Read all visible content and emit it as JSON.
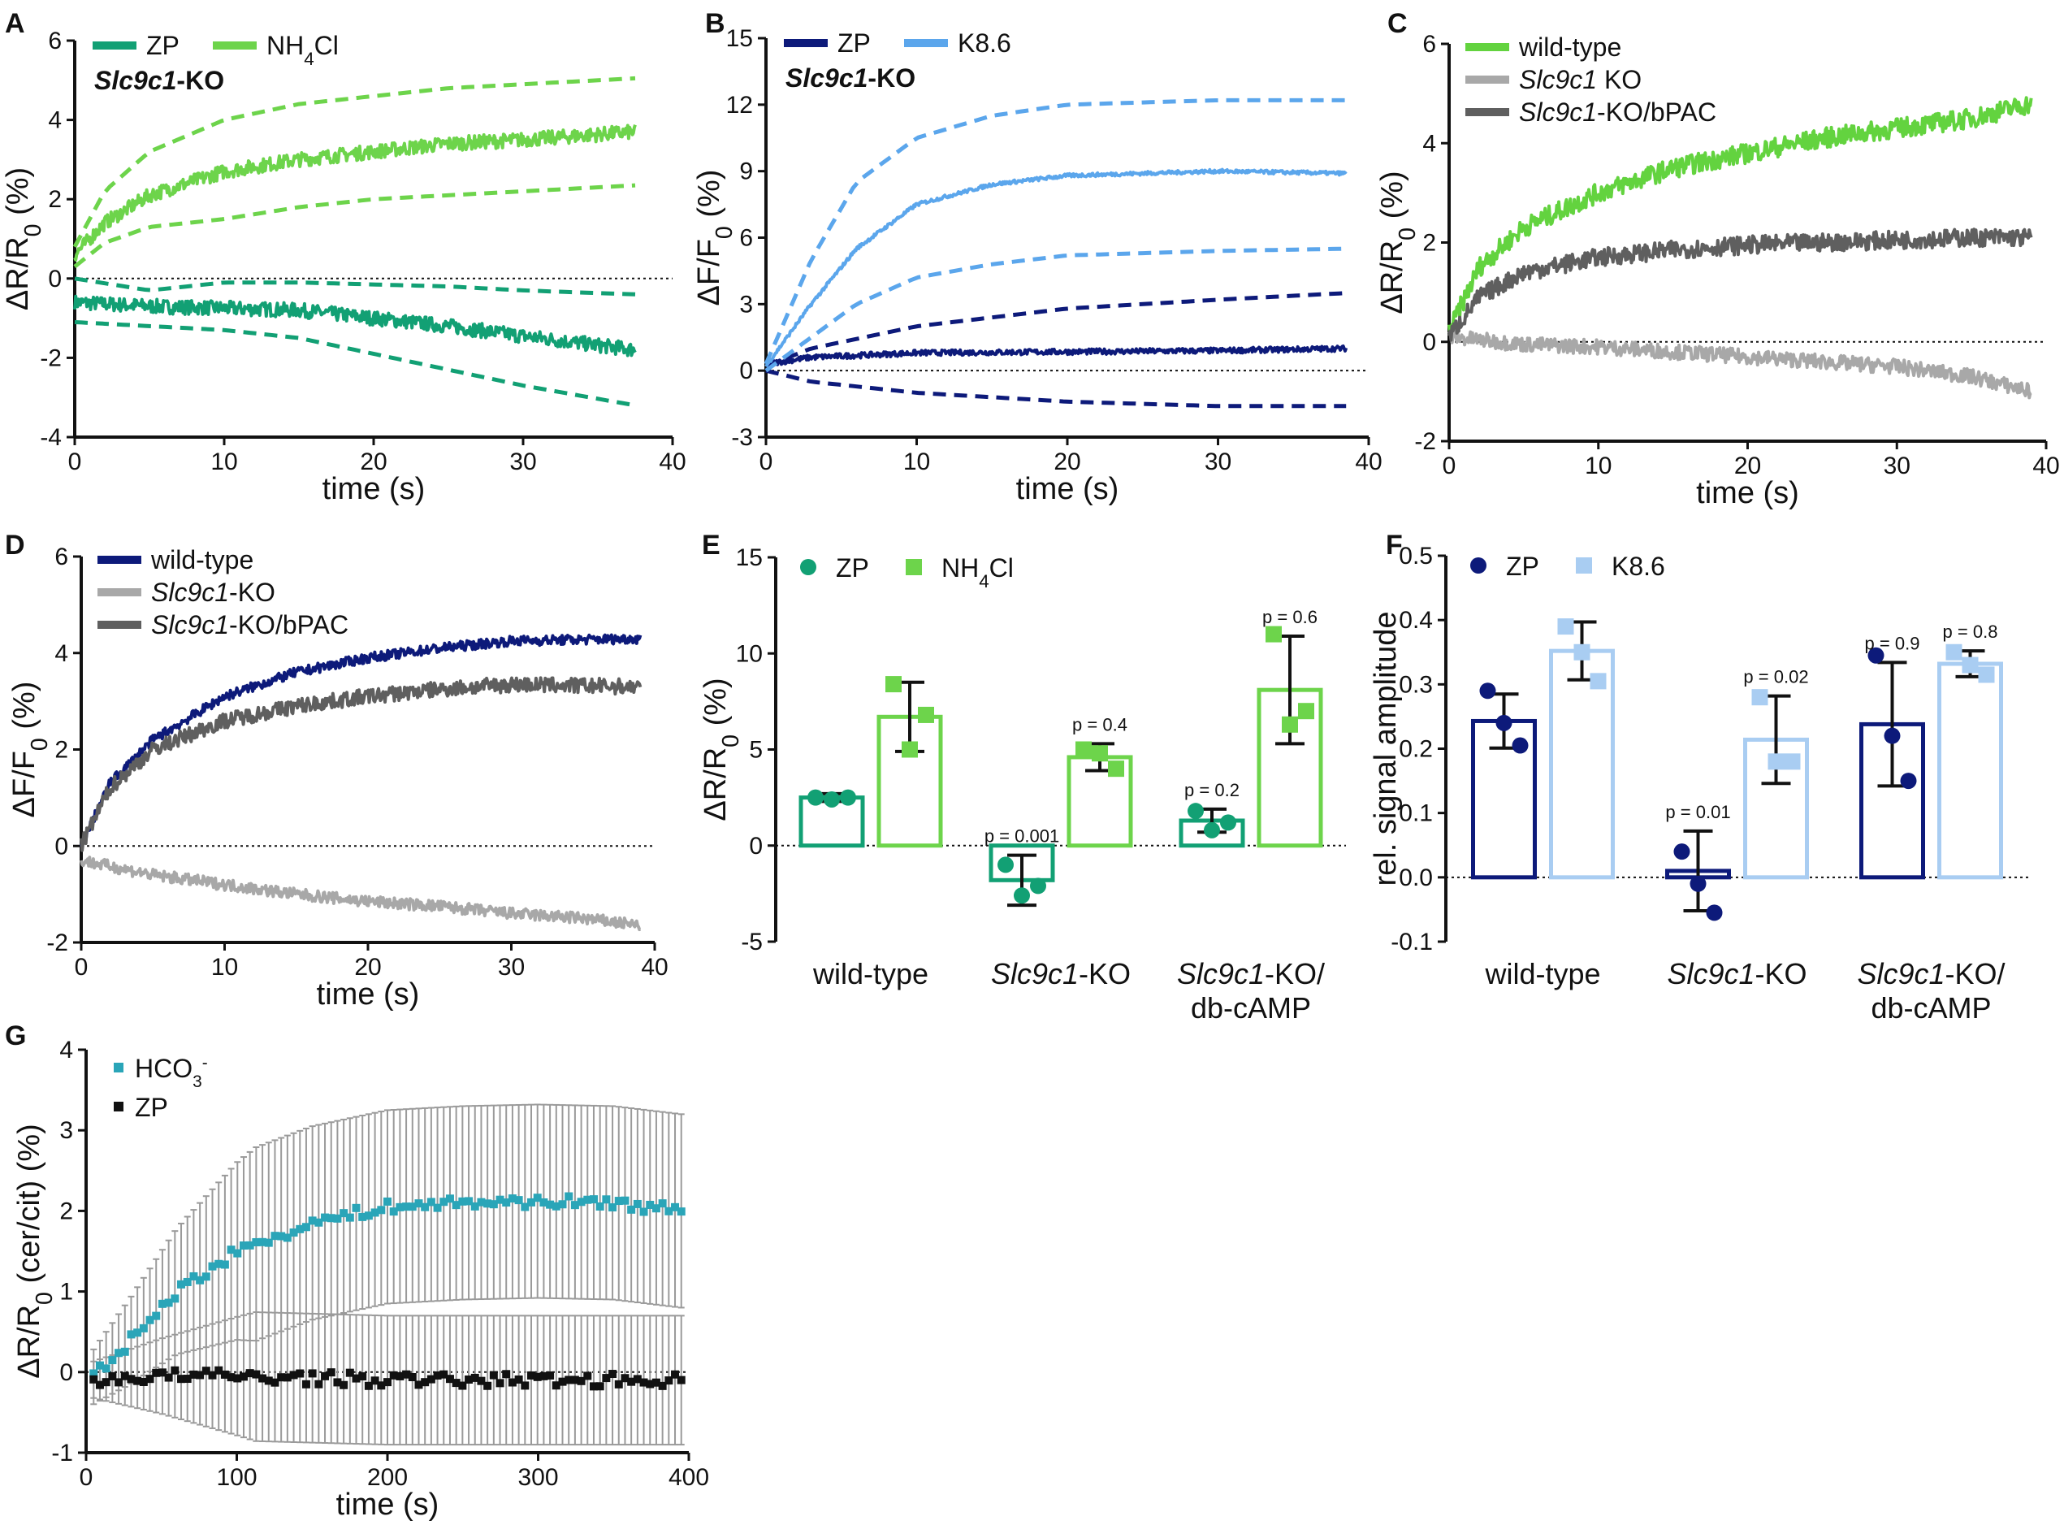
{
  "figure": {
    "panels": [
      "A",
      "B",
      "C",
      "D",
      "E",
      "F",
      "G"
    ]
  },
  "chart_data": [
    {
      "id": "A",
      "letter": "A",
      "type": "line",
      "ylabel": "ΔR/R0 (%)",
      "xlabel": "time (s)",
      "xlim": [
        0,
        40
      ],
      "ylim": [
        -4,
        6
      ],
      "xticks": [
        0,
        10,
        20,
        30,
        40
      ],
      "yticks": [
        -4,
        -2,
        0,
        2,
        4,
        6
      ],
      "annotation": "Slc9c1-KO",
      "series": [
        {
          "name": "ZP",
          "color": "#12a074",
          "noise": 0.18,
          "xmax": 37.5,
          "x": [
            0,
            5,
            10,
            15,
            20,
            25,
            30,
            37.5
          ],
          "y": [
            -0.6,
            -0.7,
            -0.75,
            -0.8,
            -1.0,
            -1.2,
            -1.45,
            -1.8
          ],
          "upper": [
            0,
            -0.3,
            -0.1,
            -0.1,
            -0.15,
            -0.2,
            -0.3,
            -0.4
          ],
          "lower": [
            -1.1,
            -1.2,
            -1.3,
            -1.5,
            -1.9,
            -2.3,
            -2.7,
            -3.2
          ]
        },
        {
          "name": "NH4Cl",
          "color": "#6dd44b",
          "noise": 0.18,
          "xmax": 37.5,
          "x": [
            0,
            2,
            5,
            10,
            15,
            20,
            25,
            30,
            37.5
          ],
          "y": [
            0.6,
            1.4,
            2.1,
            2.7,
            3.0,
            3.2,
            3.4,
            3.5,
            3.7
          ],
          "upper": [
            0.8,
            2.2,
            3.2,
            4.0,
            4.4,
            4.6,
            4.8,
            4.9,
            5.05
          ],
          "lower": [
            0.3,
            0.9,
            1.3,
            1.5,
            1.8,
            2.0,
            2.1,
            2.2,
            2.35
          ]
        }
      ]
    },
    {
      "id": "B",
      "letter": "B",
      "type": "line",
      "ylabel": "ΔF/F0 (%)",
      "xlabel": "time (s)",
      "xlim": [
        0,
        40
      ],
      "ylim": [
        -3,
        15
      ],
      "xticks": [
        0,
        10,
        20,
        30,
        40
      ],
      "yticks": [
        -3,
        0,
        3,
        6,
        9,
        12,
        15
      ],
      "annotation": "Slc9c1-KO",
      "series": [
        {
          "name": "ZP",
          "color": "#0d1a7a",
          "noise": 0.12,
          "xmax": 38.5,
          "x": [
            0,
            3,
            10,
            20,
            30,
            38.5
          ],
          "y": [
            0.3,
            0.6,
            0.8,
            0.85,
            0.9,
            1.0
          ],
          "upper": [
            0.2,
            1.0,
            2.0,
            2.8,
            3.2,
            3.5
          ],
          "lower": [
            0.0,
            -0.5,
            -1.0,
            -1.4,
            -1.6,
            -1.6
          ]
        },
        {
          "name": "K8.6",
          "color": "#5ba6ec",
          "noise": 0.08,
          "xmax": 38.5,
          "x": [
            0,
            3,
            6,
            10,
            15,
            20,
            30,
            38.5
          ],
          "y": [
            0.2,
            3.0,
            5.5,
            7.5,
            8.4,
            8.8,
            9.0,
            8.9
          ],
          "upper": [
            0.3,
            5.0,
            8.5,
            10.5,
            11.5,
            12.0,
            12.2,
            12.2
          ],
          "lower": [
            0.0,
            1.5,
            3.0,
            4.2,
            4.8,
            5.2,
            5.4,
            5.5
          ]
        }
      ]
    },
    {
      "id": "C",
      "letter": "C",
      "type": "line",
      "ylabel": "ΔR/R0 (%)",
      "xlabel": "time (s)",
      "xlim": [
        0,
        40
      ],
      "ylim": [
        -2,
        6
      ],
      "xticks": [
        0,
        10,
        20,
        30,
        40
      ],
      "yticks": [
        -2,
        0,
        2,
        4,
        6
      ],
      "series": [
        {
          "name": "wild-type",
          "color": "#63d33f",
          "noise": 0.2,
          "xmax": 39,
          "x": [
            0,
            2,
            5,
            10,
            15,
            20,
            25,
            30,
            35,
            39
          ],
          "y": [
            0.2,
            1.5,
            2.3,
            3.0,
            3.5,
            3.8,
            4.1,
            4.3,
            4.5,
            4.8
          ]
        },
        {
          "name": "Slc9c1 KO",
          "color": "#a8a8a8",
          "noise": 0.15,
          "xmax": 39,
          "x": [
            0,
            5,
            10,
            15,
            20,
            25,
            30,
            35,
            39
          ],
          "y": [
            0.1,
            -0.05,
            -0.1,
            -0.2,
            -0.3,
            -0.4,
            -0.5,
            -0.7,
            -1.0
          ]
        },
        {
          "name": "Slc9c1-KO/bPAC",
          "color": "#5f5f5f",
          "noise": 0.18,
          "xmax": 39,
          "x": [
            0,
            2,
            5,
            10,
            15,
            20,
            25,
            30,
            35,
            39
          ],
          "y": [
            0.1,
            0.9,
            1.4,
            1.7,
            1.85,
            1.95,
            2.0,
            2.05,
            2.1,
            2.1
          ]
        }
      ]
    },
    {
      "id": "D",
      "letter": "D",
      "type": "line",
      "ylabel": "ΔF/F0 (%)",
      "xlabel": "time (s)",
      "xlim": [
        0,
        40
      ],
      "ylim": [
        -2,
        6
      ],
      "xticks": [
        0,
        10,
        20,
        30,
        40
      ],
      "yticks": [
        -2,
        0,
        2,
        4,
        6
      ],
      "series": [
        {
          "name": "wild-type",
          "color": "#0d1a7a",
          "noise": 0.1,
          "xmax": 39,
          "x": [
            0,
            2,
            5,
            10,
            15,
            20,
            25,
            30,
            39
          ],
          "y": [
            0,
            1.3,
            2.2,
            3.1,
            3.6,
            3.9,
            4.1,
            4.25,
            4.3
          ]
        },
        {
          "name": "Slc9c1-KO",
          "color": "#a8a8a8",
          "noise": 0.12,
          "xmax": 39,
          "x": [
            0,
            5,
            10,
            15,
            20,
            25,
            30,
            35,
            39
          ],
          "y": [
            -0.3,
            -0.6,
            -0.8,
            -1.0,
            -1.15,
            -1.25,
            -1.4,
            -1.5,
            -1.65
          ]
        },
        {
          "name": "Slc9c1-KO/bPAC",
          "color": "#5f5f5f",
          "noise": 0.16,
          "xmax": 39,
          "x": [
            0,
            2,
            5,
            10,
            15,
            20,
            25,
            30,
            39
          ],
          "y": [
            0,
            1.2,
            2.0,
            2.6,
            2.9,
            3.1,
            3.25,
            3.35,
            3.3
          ]
        }
      ]
    },
    {
      "id": "E",
      "letter": "E",
      "type": "bar",
      "ylabel": "ΔR/R0 (%)",
      "ylim": [
        -5,
        15
      ],
      "yticks": [
        -5,
        0,
        5,
        10,
        15
      ],
      "categories": [
        "wild-type",
        "Slc9c1-KO",
        "Slc9c1-KO/ db-cAMP"
      ],
      "series": [
        {
          "name": "ZP",
          "color": "#12a074",
          "marker": "circle",
          "values": [
            2.5,
            -1.8,
            1.3
          ],
          "err": [
            0.2,
            1.3,
            0.6
          ],
          "points": [
            [
              2.5,
              2.4,
              2.5
            ],
            [
              -1.0,
              -2.6,
              -2.1
            ],
            [
              1.8,
              0.8,
              1.2
            ]
          ]
        },
        {
          "name": "NH4Cl",
          "color": "#6dd44b",
          "marker": "square",
          "values": [
            6.7,
            4.6,
            8.1
          ],
          "err": [
            1.8,
            0.7,
            2.8
          ],
          "points": [
            [
              8.4,
              5.0,
              6.8
            ],
            [
              5.0,
              4.8,
              4.0
            ],
            [
              11.0,
              6.3,
              7.0
            ]
          ]
        }
      ],
      "pvalues": [
        [
          "",
          ""
        ],
        [
          "p = 0.001",
          "p = 0.4"
        ],
        [
          "p = 0.2",
          "p = 0.6"
        ]
      ]
    },
    {
      "id": "F",
      "letter": "F",
      "type": "bar",
      "ylabel": "rel. signal amplitude",
      "ylim": [
        -0.1,
        0.5
      ],
      "yticks": [
        -0.1,
        0.0,
        0.1,
        0.2,
        0.3,
        0.4,
        0.5
      ],
      "categories": [
        "wild-type",
        "Slc9c1-KO",
        "Slc9c1-KO/ db-cAMP"
      ],
      "series": [
        {
          "name": "ZP",
          "color": "#0d1a7a",
          "marker": "circle",
          "values": [
            0.243,
            0.01,
            0.238
          ],
          "err": [
            0.042,
            0.062,
            0.096
          ],
          "points": [
            [
              0.29,
              0.24,
              0.205
            ],
            [
              0.04,
              -0.01,
              -0.055
            ],
            [
              0.345,
              0.22,
              0.15
            ]
          ]
        },
        {
          "name": "K8.6",
          "color": "#a9cdf2",
          "marker": "square",
          "values": [
            0.352,
            0.214,
            0.332
          ],
          "err": [
            0.045,
            0.068,
            0.02
          ],
          "points": [
            [
              0.39,
              0.35,
              0.305
            ],
            [
              0.28,
              0.18,
              0.18
            ],
            [
              0.35,
              0.33,
              0.315
            ]
          ]
        }
      ],
      "pvalues": [
        [
          "",
          ""
        ],
        [
          "p = 0.01",
          "p = 0.02"
        ],
        [
          "p = 0.9",
          "p = 0.8"
        ]
      ]
    },
    {
      "id": "G",
      "letter": "G",
      "type": "scatter",
      "ylabel": "ΔR/R0 (cer/cit) (%)",
      "xlabel": "time (s)",
      "xlim": [
        0,
        400
      ],
      "ylim": [
        -1,
        4
      ],
      "xticks": [
        0,
        100,
        200,
        300,
        400
      ],
      "yticks": [
        -1,
        0,
        1,
        2,
        3,
        4
      ],
      "series": [
        {
          "name": "HCO3-",
          "color": "#2aa5b8",
          "noise": 0.07,
          "err": 1.2,
          "x": [
            0,
            30,
            60,
            100,
            150,
            200,
            250,
            300,
            350,
            395
          ],
          "y": [
            -0.15,
            0.4,
            1.0,
            1.5,
            1.85,
            2.05,
            2.1,
            2.12,
            2.1,
            2.0
          ]
        },
        {
          "name": "ZP",
          "color": "#111111",
          "noise": 0.08,
          "err": 0.8,
          "x": [
            0,
            50,
            100,
            200,
            300,
            395
          ],
          "y": [
            -0.1,
            -0.05,
            -0.05,
            -0.1,
            -0.1,
            -0.1
          ]
        }
      ]
    }
  ]
}
